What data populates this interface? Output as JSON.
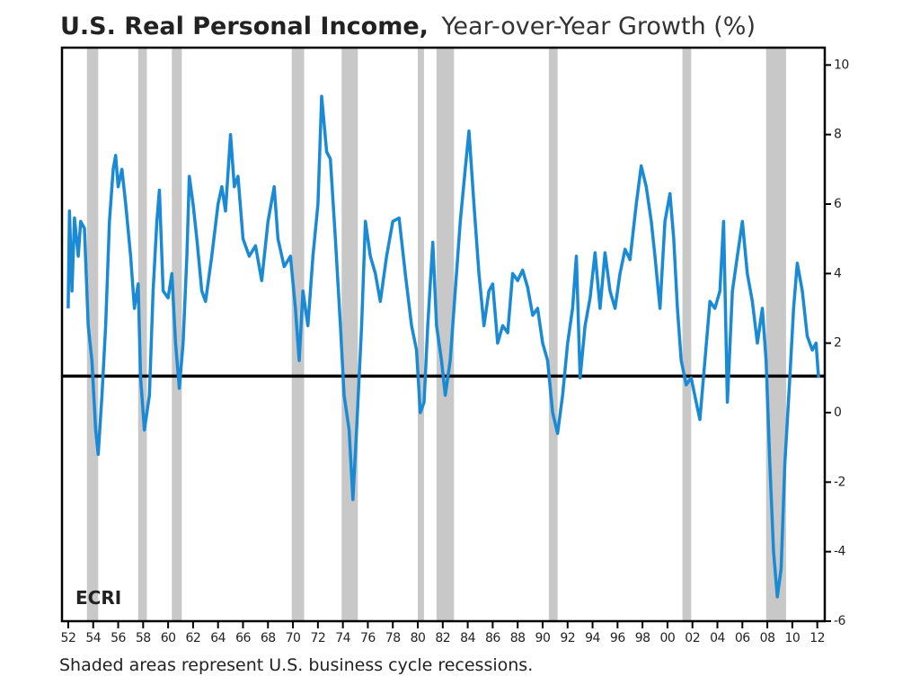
{
  "chart_data": {
    "type": "line",
    "title": "U.S. Real Personal Income,",
    "subtitle": "Year-over-Year Growth (%)",
    "note": "Shaded areas represent U.S. business cycle recessions.",
    "source": "ECRI",
    "color": "#1a8ad4",
    "reference_line": 1.05,
    "recessions": [
      [
        1953.5,
        1954.4
      ],
      [
        1957.6,
        1958.3
      ],
      [
        1960.3,
        1961.1
      ],
      [
        1969.9,
        1970.9
      ],
      [
        1973.9,
        1975.2
      ],
      [
        1980.0,
        1980.5
      ],
      [
        1981.5,
        1982.9
      ],
      [
        1990.5,
        1991.2
      ],
      [
        2001.2,
        2001.9
      ],
      [
        2007.9,
        2009.5
      ]
    ],
    "xlim": [
      1951.5,
      2012.6
    ],
    "ylim": [
      -6,
      10.5
    ],
    "yticks": [
      -6,
      -4,
      -2,
      0,
      2,
      4,
      6,
      8,
      10
    ],
    "xticks": [
      {
        "value": 1952,
        "label": "52"
      },
      {
        "value": 1954,
        "label": "54"
      },
      {
        "value": 1956,
        "label": "56"
      },
      {
        "value": 1958,
        "label": "58"
      },
      {
        "value": 1960,
        "label": "60"
      },
      {
        "value": 1962,
        "label": "62"
      },
      {
        "value": 1964,
        "label": "64"
      },
      {
        "value": 1966,
        "label": "66"
      },
      {
        "value": 1968,
        "label": "68"
      },
      {
        "value": 1970,
        "label": "70"
      },
      {
        "value": 1972,
        "label": "72"
      },
      {
        "value": 1974,
        "label": "74"
      },
      {
        "value": 1976,
        "label": "76"
      },
      {
        "value": 1978,
        "label": "78"
      },
      {
        "value": 1980,
        "label": "80"
      },
      {
        "value": 1982,
        "label": "82"
      },
      {
        "value": 1984,
        "label": "84"
      },
      {
        "value": 1986,
        "label": "86"
      },
      {
        "value": 1988,
        "label": "88"
      },
      {
        "value": 1990,
        "label": "90"
      },
      {
        "value": 1992,
        "label": "92"
      },
      {
        "value": 1994,
        "label": "94"
      },
      {
        "value": 1996,
        "label": "96"
      },
      {
        "value": 1998,
        "label": "98"
      },
      {
        "value": 2000,
        "label": "00"
      },
      {
        "value": 2002,
        "label": "02"
      },
      {
        "value": 2004,
        "label": "04"
      },
      {
        "value": 2006,
        "label": "06"
      },
      {
        "value": 2008,
        "label": "08"
      },
      {
        "value": 2010,
        "label": "10"
      },
      {
        "value": 2012,
        "label": "12"
      }
    ],
    "x": [
      1952.0,
      1952.1,
      1952.3,
      1952.5,
      1952.8,
      1953.0,
      1953.3,
      1953.6,
      1953.9,
      1954.2,
      1954.4,
      1954.7,
      1955.0,
      1955.3,
      1955.6,
      1955.8,
      1956.0,
      1956.3,
      1956.6,
      1957.0,
      1957.3,
      1957.6,
      1957.8,
      1958.1,
      1958.5,
      1958.8,
      1959.1,
      1959.3,
      1959.6,
      1960.0,
      1960.3,
      1960.6,
      1960.9,
      1961.2,
      1961.5,
      1961.7,
      1962.0,
      1962.3,
      1962.7,
      1963.0,
      1963.5,
      1964.0,
      1964.3,
      1964.6,
      1965.0,
      1965.3,
      1965.6,
      1966.0,
      1966.5,
      1967.0,
      1967.5,
      1968.0,
      1968.5,
      1968.8,
      1969.3,
      1969.8,
      1970.2,
      1970.5,
      1970.8,
      1971.2,
      1971.6,
      1972.0,
      1972.3,
      1972.7,
      1973.0,
      1973.4,
      1973.8,
      1974.1,
      1974.5,
      1974.8,
      1975.1,
      1975.5,
      1975.8,
      1976.2,
      1976.6,
      1977.0,
      1977.5,
      1978.0,
      1978.5,
      1979.0,
      1979.5,
      1979.9,
      1980.2,
      1980.5,
      1980.8,
      1981.2,
      1981.5,
      1981.9,
      1982.2,
      1982.6,
      1983.0,
      1983.4,
      1983.8,
      1984.1,
      1984.5,
      1984.9,
      1985.3,
      1985.7,
      1986.0,
      1986.4,
      1986.8,
      1987.2,
      1987.6,
      1988.0,
      1988.4,
      1988.8,
      1989.2,
      1989.6,
      1990.0,
      1990.4,
      1990.8,
      1991.2,
      1991.6,
      1992.0,
      1992.4,
      1992.7,
      1993.0,
      1993.4,
      1993.8,
      1994.2,
      1994.6,
      1995.0,
      1995.4,
      1995.8,
      1996.2,
      1996.6,
      1997.0,
      1997.5,
      1997.9,
      1998.3,
      1998.7,
      1999.0,
      1999.4,
      1999.8,
      2000.2,
      2000.5,
      2000.8,
      2001.1,
      2001.5,
      2001.9,
      2002.3,
      2002.6,
      2003.0,
      2003.4,
      2003.8,
      2004.2,
      2004.5,
      2004.8,
      2005.2,
      2005.6,
      2006.0,
      2006.4,
      2006.8,
      2007.2,
      2007.6,
      2007.9,
      2008.2,
      2008.5,
      2008.8,
      2009.1,
      2009.4,
      2009.8,
      2010.1,
      2010.4,
      2010.8,
      2011.2,
      2011.6,
      2011.9,
      2012.1
    ],
    "values": [
      3.0,
      5.8,
      3.5,
      5.6,
      4.5,
      5.5,
      5.3,
      2.5,
      1.5,
      -0.5,
      -1.2,
      0.5,
      2.5,
      5.5,
      7.0,
      7.4,
      6.5,
      7.0,
      6.0,
      4.5,
      3.0,
      3.7,
      1.0,
      -0.5,
      0.5,
      3.5,
      5.5,
      6.4,
      3.5,
      3.3,
      4.0,
      2.0,
      0.7,
      2.0,
      4.5,
      6.8,
      6.0,
      5.0,
      3.5,
      3.2,
      4.5,
      6.0,
      6.5,
      5.8,
      8.0,
      6.5,
      6.8,
      5.0,
      4.5,
      4.8,
      3.8,
      5.5,
      6.5,
      5.0,
      4.2,
      4.5,
      3.0,
      1.5,
      3.5,
      2.5,
      4.5,
      6.0,
      9.1,
      7.5,
      7.3,
      5.0,
      2.5,
      0.5,
      -0.5,
      -2.5,
      -0.5,
      2.5,
      5.5,
      4.5,
      4.0,
      3.2,
      4.5,
      5.5,
      5.6,
      4.0,
      2.5,
      1.8,
      0.0,
      0.3,
      2.5,
      4.9,
      2.5,
      1.5,
      0.5,
      1.5,
      3.5,
      5.5,
      7.0,
      8.1,
      6.0,
      4.0,
      2.5,
      3.5,
      3.7,
      2.0,
      2.5,
      2.3,
      4.0,
      3.8,
      4.1,
      3.6,
      2.8,
      3.0,
      2.0,
      1.5,
      0.0,
      -0.6,
      0.5,
      2.0,
      3.0,
      4.5,
      1.0,
      2.5,
      3.3,
      4.6,
      3.0,
      4.6,
      3.5,
      3.0,
      4.0,
      4.7,
      4.4,
      6.0,
      7.1,
      6.5,
      5.5,
      4.5,
      3.0,
      5.5,
      6.3,
      5.0,
      3.0,
      1.5,
      0.8,
      1.0,
      0.3,
      -0.2,
      1.5,
      3.2,
      3.0,
      3.5,
      5.5,
      0.3,
      3.5,
      4.5,
      5.5,
      4.0,
      3.2,
      2.0,
      3.0,
      1.5,
      -1.5,
      -4.0,
      -5.3,
      -4.5,
      -1.5,
      1.0,
      3.0,
      4.3,
      3.5,
      2.2,
      1.8,
      2.0,
      1.0
    ]
  }
}
